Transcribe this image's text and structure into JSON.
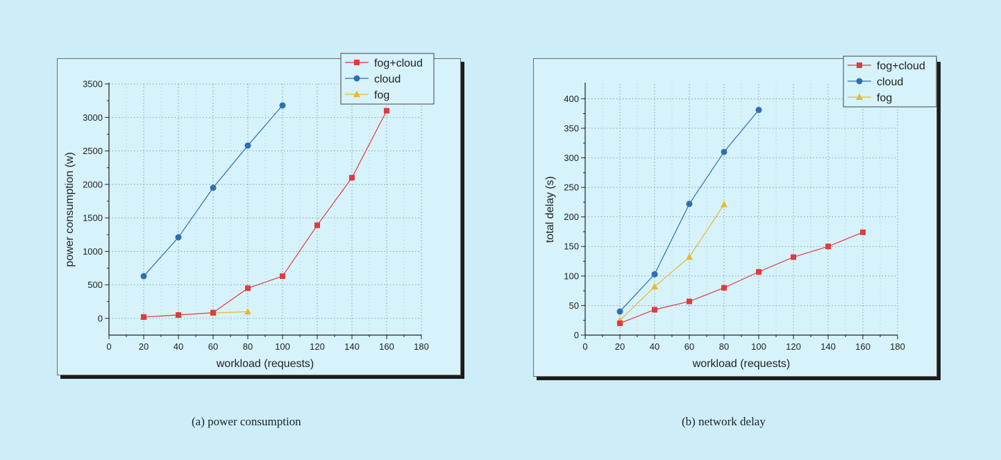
{
  "chart_data": [
    {
      "type": "line",
      "caption": "(a) power consumption",
      "xlabel": "workload (requests)",
      "ylabel": "power consumption (w)",
      "xlim": [
        0,
        180
      ],
      "ylim": [
        -250,
        3500
      ],
      "xticks": [
        0,
        20,
        40,
        60,
        80,
        100,
        120,
        140,
        160,
        180
      ],
      "yticks": [
        0,
        500,
        1000,
        1500,
        2000,
        2500,
        3000,
        3500
      ],
      "grid": true,
      "legend_position": "top-right",
      "series": [
        {
          "name": "fog+cloud",
          "marker": "square",
          "color": "#e03a3e",
          "x": [
            20,
            40,
            60,
            80,
            100,
            120,
            140,
            160
          ],
          "y": [
            20,
            50,
            85,
            450,
            630,
            1390,
            2100,
            3100
          ]
        },
        {
          "name": "cloud",
          "marker": "circle",
          "color": "#2f6eb0",
          "x": [
            20,
            40,
            60,
            80,
            100
          ],
          "y": [
            630,
            1210,
            1950,
            2580,
            3180
          ]
        },
        {
          "name": "fog",
          "marker": "triangle",
          "color": "#e8b833",
          "x": [
            20,
            40,
            60,
            80
          ],
          "y": [
            20,
            55,
            80,
            100
          ]
        }
      ]
    },
    {
      "type": "line",
      "caption": "(b) network delay",
      "xlabel": "workload (requests)",
      "ylabel": "total delay (s)",
      "xlim": [
        0,
        180
      ],
      "ylim": [
        0,
        425
      ],
      "xticks": [
        0,
        20,
        40,
        60,
        80,
        100,
        120,
        140,
        160,
        180
      ],
      "yticks": [
        0,
        50,
        100,
        150,
        200,
        250,
        300,
        350,
        400
      ],
      "grid": true,
      "legend_position": "top-right",
      "series": [
        {
          "name": "fog+cloud",
          "marker": "square",
          "color": "#e03a3e",
          "x": [
            20,
            40,
            60,
            80,
            100,
            120,
            140,
            160
          ],
          "y": [
            20,
            43,
            57,
            80,
            107,
            132,
            150,
            174
          ]
        },
        {
          "name": "cloud",
          "marker": "circle",
          "color": "#2f6eb0",
          "x": [
            20,
            40,
            60,
            80,
            100
          ],
          "y": [
            40,
            103,
            222,
            310,
            381
          ]
        },
        {
          "name": "fog",
          "marker": "triangle",
          "color": "#e8b833",
          "x": [
            20,
            40,
            60,
            80
          ],
          "y": [
            25,
            82,
            132,
            221
          ]
        }
      ]
    }
  ]
}
